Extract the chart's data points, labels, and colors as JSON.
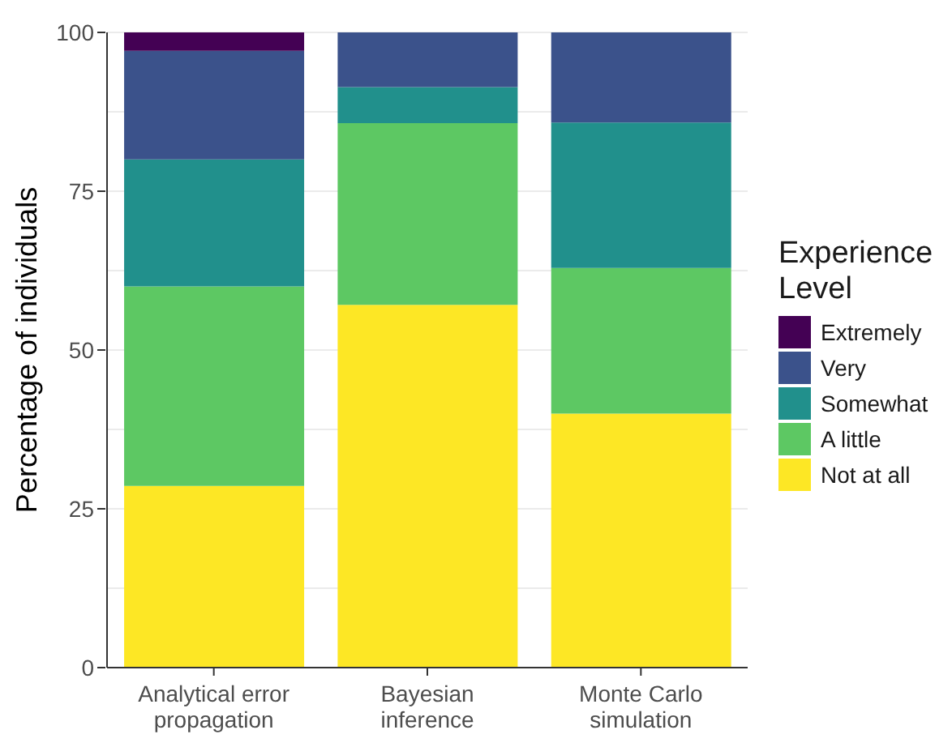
{
  "chart_data": {
    "type": "bar",
    "stacked": true,
    "ylabel": "Percentage of individuals",
    "legend_title": "Experience Level",
    "legend": "right",
    "grid": "y",
    "categories": [
      "Analytical error propagation",
      "Bayesian inference",
      "Monte Carlo simulation"
    ],
    "series": [
      {
        "name": "Not at all",
        "color": "#fde725",
        "values": [
          28.6,
          57.1,
          40
        ]
      },
      {
        "name": "A little",
        "color": "#5dc863",
        "values": [
          31.4,
          28.6,
          22.9
        ]
      },
      {
        "name": "Somewhat",
        "color": "#21908c",
        "values": [
          20,
          5.7,
          22.9
        ]
      },
      {
        "name": "Very",
        "color": "#3b528b",
        "values": [
          17.1,
          8.6,
          14.3
        ]
      },
      {
        "name": "Extremely",
        "color": "#440154",
        "values": [
          2.9,
          0,
          0
        ]
      }
    ],
    "ylim": [
      0,
      100
    ],
    "yticks": [
      0,
      {
        "value": 12.5,
        "label": null
      },
      25,
      {
        "value": 37.5,
        "label": null
      },
      50,
      {
        "value": 62.5,
        "label": null
      },
      75,
      {
        "value": 87.5,
        "label": null
      },
      100
    ]
  }
}
